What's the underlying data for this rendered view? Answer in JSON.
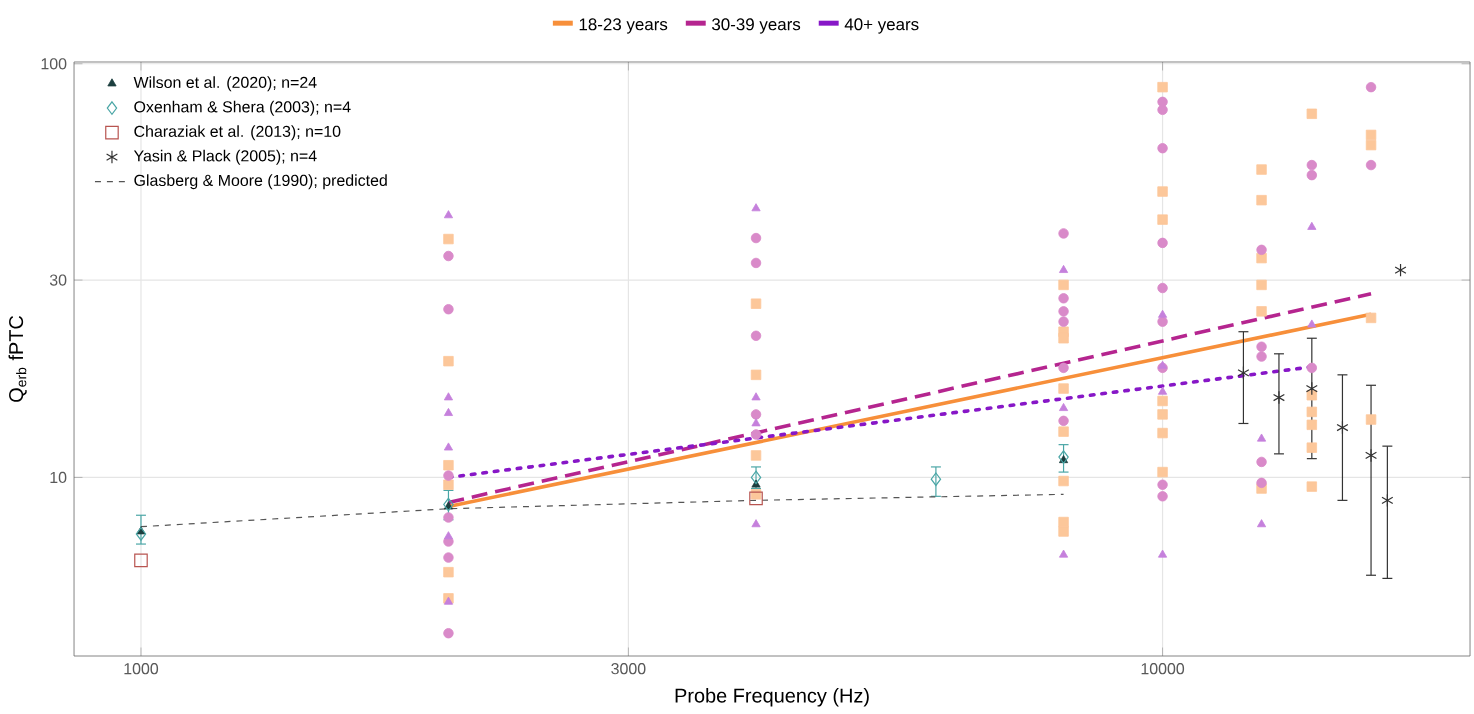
{
  "chart_data": {
    "type": "scatter",
    "xlabel": "Probe Frequency (Hz)",
    "ylabel": "Q$_{erb}$ fPTC",
    "log": "xy",
    "xlim": [
      860,
      20000
    ],
    "ylim": [
      3.7,
      101
    ],
    "xticks": [
      1000,
      3000,
      10000
    ],
    "yticks": [
      10,
      30,
      100
    ],
    "grid": true,
    "legend": "top left",
    "series": [
      {
        "marker": "square",
        "color": "#fcc79a",
        "x": [
          2000,
          2000,
          2000,
          2000,
          2000,
          2000,
          4000,
          4000,
          4000,
          4000,
          8000,
          8000,
          8000,
          8000,
          8000,
          8000,
          8000,
          8000,
          10000,
          10000,
          10000,
          10000,
          10000,
          10000,
          10000,
          12500,
          12500,
          12500,
          12500,
          12500,
          12500,
          14000,
          14000,
          14000,
          14000,
          14000,
          14000,
          16000,
          16000,
          16000,
          16000
        ],
        "values": [
          37.7,
          19.1,
          10.7,
          9.6,
          5.9,
          5.1,
          26.3,
          17.7,
          11.3,
          9.1,
          29.2,
          22.5,
          21.7,
          16.4,
          12.9,
          9.8,
          7.8,
          7.4,
          87.8,
          49.1,
          42,
          15.3,
          14.2,
          12.8,
          10.3,
          55.5,
          46.8,
          33.9,
          29.2,
          25.2,
          9.4,
          75.7,
          15.8,
          14.4,
          13.4,
          11.8,
          9.5,
          67.3,
          63.6,
          24.3,
          13.8
        ]
      },
      {
        "marker": "circle",
        "color": "#d98ac9",
        "x": [
          2000,
          2000,
          2000,
          2000,
          2000,
          2000,
          2000,
          4000,
          4000,
          4000,
          4000,
          4000,
          8000,
          8000,
          8000,
          8000,
          8000,
          8000,
          10000,
          10000,
          10000,
          10000,
          10000,
          10000,
          10000,
          10000,
          10000,
          12500,
          12500,
          12500,
          12500,
          12500,
          14000,
          14000,
          14000,
          16000,
          16000
        ],
        "values": [
          34.3,
          25.5,
          10.1,
          8.0,
          7.0,
          6.4,
          4.2,
          37.9,
          33,
          22,
          14.2,
          12.7,
          38.9,
          27.1,
          25.2,
          23.8,
          18.4,
          13.7,
          80.9,
          77.4,
          62.5,
          36.9,
          28.7,
          23.8,
          18.4,
          9.6,
          9.0,
          35.5,
          20.7,
          19.6,
          10.9,
          9.7,
          56.9,
          53.8,
          18.4,
          87.8,
          56.9
        ]
      },
      {
        "marker": "triangle",
        "color": "#c580dc",
        "x": [
          2000,
          2000,
          2000,
          2000,
          2000,
          2000,
          4000,
          4000,
          4000,
          4000,
          8000,
          8000,
          8000,
          10000,
          10000,
          10000,
          10000,
          12500,
          12500,
          14000,
          14000
        ],
        "values": [
          43,
          15.6,
          14.3,
          11.8,
          7.2,
          5.0,
          44.7,
          15.6,
          13.5,
          7.7,
          31.7,
          14.7,
          6.5,
          24.7,
          18.6,
          16.1,
          6.5,
          12.4,
          7.7,
          40.3,
          23.4
        ]
      },
      {
        "type": "line",
        "name": "18-23 years",
        "color": "#f78f3a",
        "line_style": "solid",
        "x": [
          2000,
          16000
        ],
        "values": [
          8.5,
          24.8
        ]
      },
      {
        "type": "line",
        "name": "30-39 years",
        "color": "#b5258f",
        "line_style": "dashed",
        "x": [
          2000,
          16000
        ],
        "values": [
          8.7,
          27.8
        ]
      },
      {
        "type": "line",
        "name": "40+ years",
        "color": "#8717c7",
        "line_style": "dotted",
        "x": [
          2000,
          14000
        ],
        "values": [
          10.0,
          18.5
        ]
      },
      {
        "name": "Wilson et al. (2020); n=24",
        "marker": "triangle",
        "color": "#1c3f3f",
        "x": [
          1000,
          2000,
          4000,
          8000
        ],
        "values": [
          7.4,
          8.5,
          9.6,
          11.0
        ]
      },
      {
        "name": "Oxenham & Shera (2003); n=4",
        "marker": "diamond",
        "color": "#4aa6a6",
        "x": [
          1000,
          2000,
          4000,
          6000,
          8000
        ],
        "values": [
          7.3,
          8.6,
          10.0,
          9.9,
          11.2
        ],
        "errors": [
          [
            6.9,
            8.1
          ],
          [
            7.9,
            9.3
          ],
          [
            9.4,
            10.6
          ],
          [
            9.0,
            10.6
          ],
          [
            10.3,
            12.0
          ]
        ]
      },
      {
        "name": "Charaziak et al. (2013); n=10",
        "marker": "square",
        "color": "#b85450",
        "x": [
          1000,
          4000
        ],
        "values": [
          6.3,
          8.9
        ]
      },
      {
        "name": "Yasin & Plack (2005); n=4",
        "marker": "cross",
        "color": "#333333",
        "x": [
          12000,
          13000,
          14000,
          15000,
          16000,
          16600,
          17100
        ],
        "values": [
          17.9,
          15.6,
          16.4,
          13.2,
          11.3,
          8.8,
          31.7
        ],
        "errors": [
          [
            13.5,
            22.5
          ],
          [
            11.4,
            19.9
          ],
          [
            11.1,
            21.7
          ],
          [
            8.8,
            17.7
          ],
          [
            5.8,
            16.7
          ],
          [
            5.7,
            11.9
          ],
          null
        ]
      },
      {
        "type": "line",
        "name": "Glasberg & Moore (1990); predicted",
        "color": "#555555",
        "line_style": "dashed",
        "x": [
          1000,
          2000,
          4000,
          8000
        ],
        "values": [
          7.6,
          8.4,
          8.8,
          9.1
        ]
      }
    ]
  }
}
